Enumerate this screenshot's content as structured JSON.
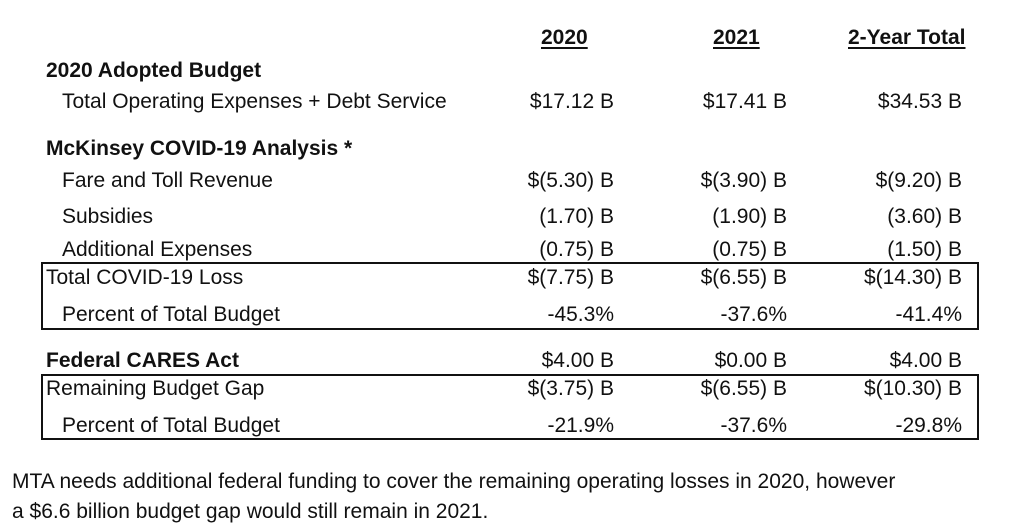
{
  "headers": {
    "col1": "2020",
    "col2": "2021",
    "col3": "2-Year Total"
  },
  "adopted": {
    "title": "2020 Adopted Budget",
    "rows": [
      {
        "label": "Total Operating Expenses + Debt Service",
        "v2020": "$17.12 B",
        "v2021": "$17.41 B",
        "total": "$34.53 B"
      }
    ]
  },
  "mckinsey": {
    "title": "McKinsey COVID-19 Analysis *",
    "rows": [
      {
        "label": "Fare and Toll Revenue",
        "v2020": "$(5.30) B",
        "v2021": "$(3.90) B",
        "total": "$(9.20) B"
      },
      {
        "label": "Subsidies",
        "v2020": "(1.70) B",
        "v2021": "(1.90) B",
        "total": "(3.60) B"
      },
      {
        "label": "Additional Expenses",
        "v2020": "(0.75) B",
        "v2021": "(0.75) B",
        "total": "(1.50) B"
      }
    ],
    "total_loss": {
      "label": "Total COVID-19 Loss",
      "v2020": "$(7.75) B",
      "v2021": "$(6.55) B",
      "total": "$(14.30) B"
    },
    "percent": {
      "label": "Percent of Total Budget",
      "v2020": "-45.3%",
      "v2021": "-37.6%",
      "total": "-41.4%"
    }
  },
  "cares": {
    "title": "Federal CARES Act",
    "v2020": "$4.00 B",
    "v2021": "$0.00 B",
    "total": "$4.00 B",
    "gap": {
      "label": "Remaining Budget Gap",
      "v2020": "$(3.75) B",
      "v2021": "$(6.55) B",
      "total": "$(10.30) B"
    },
    "percent": {
      "label": "Percent of Total Budget",
      "v2020": "-21.9%",
      "v2021": "-37.6%",
      "total": "-29.8%"
    }
  },
  "note": {
    "line1": "MTA needs additional federal funding to cover the remaining operating losses in 2020, however",
    "line2": "a $6.6 billion budget gap would still remain in 2021."
  }
}
